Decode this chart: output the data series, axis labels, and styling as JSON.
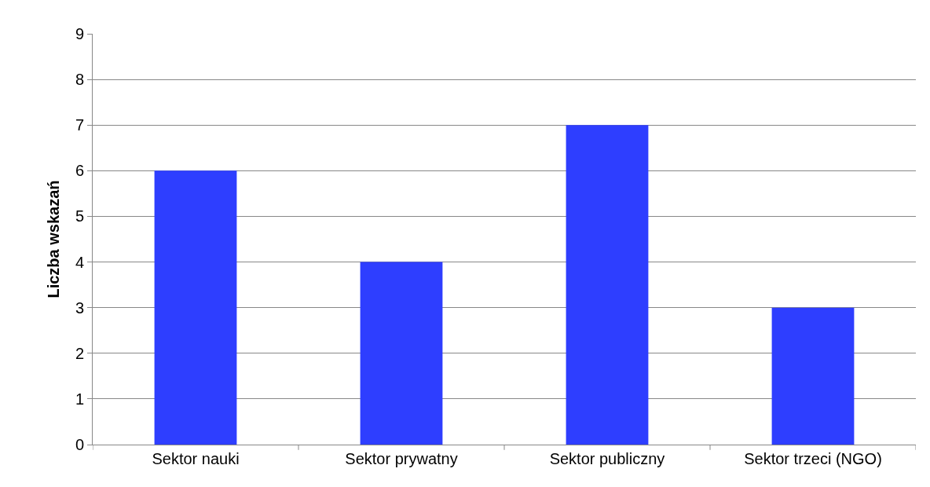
{
  "chart_data": {
    "type": "bar",
    "ylabel": "Liczba wskazań",
    "categories": [
      "Sektor nauki",
      "Sektor prywatny",
      "Sektor publiczny",
      "Sektor trzeci (NGO)"
    ],
    "values": [
      6,
      4,
      7,
      3
    ],
    "color": "#2e3eff",
    "ylim": [
      0,
      9
    ],
    "yticks": [
      0,
      1,
      2,
      3,
      4,
      5,
      6,
      7,
      8,
      9
    ],
    "grid": "y",
    "legend": false
  }
}
